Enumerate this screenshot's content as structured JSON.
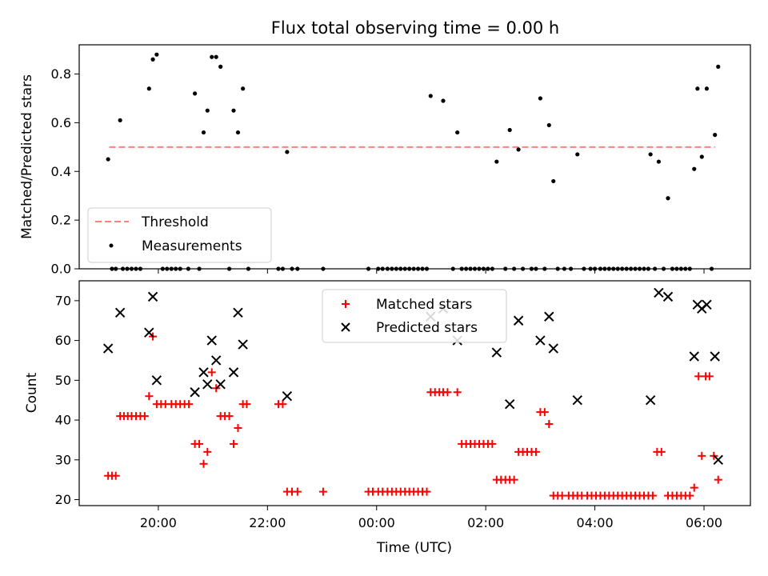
{
  "chart_data": [
    {
      "type": "scatter",
      "title": "Flux total observing time = 0.00 h",
      "xlabel": "",
      "ylabel": "Matched/Predicted stars",
      "ylim": [
        0,
        0.92
      ],
      "yticks": [
        "0.0",
        "0.2",
        "0.4",
        "0.6",
        "0.8"
      ],
      "xlim": [
        -1.45,
        10.85
      ],
      "legend": {
        "placement": "lower-left"
      },
      "threshold": {
        "name": "Threshold",
        "value": 0.5,
        "x_range": [
          -0.9,
          10.2
        ],
        "color": "#ff7f7f"
      },
      "series": [
        {
          "name": "Measurements",
          "color": "#000000",
          "points": [
            [
              -0.92,
              0.45
            ],
            [
              -0.85,
              0
            ],
            [
              -0.78,
              0
            ],
            [
              -0.7,
              0.61
            ],
            [
              -0.65,
              0
            ],
            [
              -0.57,
              0
            ],
            [
              -0.49,
              0
            ],
            [
              -0.41,
              0
            ],
            [
              -0.33,
              0
            ],
            [
              -0.17,
              0.74
            ],
            [
              -0.1,
              0.86
            ],
            [
              -0.03,
              0.88
            ],
            [
              0.08,
              0
            ],
            [
              0.16,
              0
            ],
            [
              0.24,
              0
            ],
            [
              0.32,
              0
            ],
            [
              0.4,
              0
            ],
            [
              0.55,
              0
            ],
            [
              0.67,
              0.72
            ],
            [
              0.75,
              0
            ],
            [
              0.83,
              0.56
            ],
            [
              0.9,
              0.65
            ],
            [
              0.98,
              0.87
            ],
            [
              1.06,
              0.87
            ],
            [
              1.14,
              0.83
            ],
            [
              1.3,
              0
            ],
            [
              1.38,
              0.65
            ],
            [
              1.46,
              0.56
            ],
            [
              1.55,
              0.74
            ],
            [
              1.65,
              0
            ],
            [
              2.2,
              0
            ],
            [
              2.28,
              0
            ],
            [
              2.36,
              0.48
            ],
            [
              2.45,
              0
            ],
            [
              2.55,
              0
            ],
            [
              3.02,
              0
            ],
            [
              3.85,
              0
            ],
            [
              4.03,
              0
            ],
            [
              4.11,
              0
            ],
            [
              4.2,
              0
            ],
            [
              4.28,
              0
            ],
            [
              4.36,
              0
            ],
            [
              4.44,
              0
            ],
            [
              4.52,
              0
            ],
            [
              4.6,
              0
            ],
            [
              4.68,
              0
            ],
            [
              4.76,
              0
            ],
            [
              4.84,
              0
            ],
            [
              4.92,
              0
            ],
            [
              4.99,
              0.71
            ],
            [
              5.22,
              0.69
            ],
            [
              5.4,
              0
            ],
            [
              5.48,
              0.56
            ],
            [
              5.56,
              0
            ],
            [
              5.64,
              0
            ],
            [
              5.72,
              0
            ],
            [
              5.8,
              0
            ],
            [
              5.88,
              0
            ],
            [
              5.96,
              0
            ],
            [
              6.04,
              0
            ],
            [
              6.12,
              0
            ],
            [
              6.2,
              0.44
            ],
            [
              6.36,
              0
            ],
            [
              6.44,
              0.57
            ],
            [
              6.52,
              0
            ],
            [
              6.6,
              0.49
            ],
            [
              6.68,
              0
            ],
            [
              6.84,
              0
            ],
            [
              6.92,
              0
            ],
            [
              7.0,
              0.7
            ],
            [
              7.08,
              0
            ],
            [
              7.16,
              0.59
            ],
            [
              7.24,
              0.36
            ],
            [
              7.32,
              0
            ],
            [
              7.44,
              0
            ],
            [
              7.56,
              0
            ],
            [
              7.68,
              0.47
            ],
            [
              7.8,
              0
            ],
            [
              7.92,
              0
            ],
            [
              8.0,
              0
            ],
            [
              8.1,
              0
            ],
            [
              8.18,
              0
            ],
            [
              8.26,
              0
            ],
            [
              8.34,
              0
            ],
            [
              8.42,
              0
            ],
            [
              8.5,
              0
            ],
            [
              8.58,
              0
            ],
            [
              8.66,
              0
            ],
            [
              8.74,
              0
            ],
            [
              8.82,
              0
            ],
            [
              8.9,
              0
            ],
            [
              8.98,
              0
            ],
            [
              9.02,
              0.47
            ],
            [
              9.1,
              0
            ],
            [
              9.17,
              0.44
            ],
            [
              9.26,
              0
            ],
            [
              9.34,
              0.29
            ],
            [
              9.42,
              0
            ],
            [
              9.5,
              0
            ],
            [
              9.58,
              0
            ],
            [
              9.66,
              0
            ],
            [
              9.74,
              0
            ],
            [
              9.82,
              0.41
            ],
            [
              9.88,
              0.74
            ],
            [
              9.96,
              0.46
            ],
            [
              10.05,
              0.74
            ],
            [
              10.14,
              0
            ],
            [
              10.2,
              0.55
            ],
            [
              10.26,
              0.83
            ]
          ]
        }
      ]
    },
    {
      "type": "scatter",
      "title": "",
      "xlabel": "Time (UTC)",
      "ylabel": "Count",
      "ylim": [
        18.5,
        75
      ],
      "yticks": [
        "20",
        "30",
        "40",
        "50",
        "60",
        "70"
      ],
      "xlim": [
        -1.45,
        10.85
      ],
      "xticks": [
        {
          "value": 0,
          "label": "20:00"
        },
        {
          "value": 2,
          "label": "22:00"
        },
        {
          "value": 4,
          "label": "00:00"
        },
        {
          "value": 6,
          "label": "02:00"
        },
        {
          "value": 8,
          "label": "04:00"
        },
        {
          "value": 10,
          "label": "06:00"
        }
      ],
      "legend": {
        "placement": "upper-center"
      },
      "series": [
        {
          "name": "Matched stars",
          "marker": "+",
          "color": "#ff0000",
          "points": [
            [
              -0.92,
              26
            ],
            [
              -0.85,
              26
            ],
            [
              -0.78,
              26
            ],
            [
              -0.7,
              41
            ],
            [
              -0.63,
              41
            ],
            [
              -0.56,
              41
            ],
            [
              -0.49,
              41
            ],
            [
              -0.41,
              41
            ],
            [
              -0.33,
              41
            ],
            [
              -0.25,
              41
            ],
            [
              -0.17,
              46
            ],
            [
              -0.1,
              61
            ],
            [
              -0.03,
              44
            ],
            [
              0.05,
              44
            ],
            [
              0.13,
              44
            ],
            [
              0.24,
              44
            ],
            [
              0.32,
              44
            ],
            [
              0.4,
              44
            ],
            [
              0.48,
              44
            ],
            [
              0.56,
              44
            ],
            [
              0.67,
              34
            ],
            [
              0.75,
              34
            ],
            [
              0.83,
              29
            ],
            [
              0.9,
              32
            ],
            [
              0.98,
              52
            ],
            [
              1.06,
              48
            ],
            [
              1.14,
              41
            ],
            [
              1.22,
              41
            ],
            [
              1.3,
              41
            ],
            [
              1.38,
              34
            ],
            [
              1.46,
              38
            ],
            [
              1.55,
              44
            ],
            [
              1.62,
              44
            ],
            [
              2.2,
              44
            ],
            [
              2.28,
              44
            ],
            [
              2.36,
              22
            ],
            [
              2.45,
              22
            ],
            [
              2.55,
              22
            ],
            [
              3.02,
              22
            ],
            [
              3.85,
              22
            ],
            [
              3.93,
              22
            ],
            [
              4.03,
              22
            ],
            [
              4.11,
              22
            ],
            [
              4.2,
              22
            ],
            [
              4.28,
              22
            ],
            [
              4.36,
              22
            ],
            [
              4.44,
              22
            ],
            [
              4.52,
              22
            ],
            [
              4.6,
              22
            ],
            [
              4.68,
              22
            ],
            [
              4.76,
              22
            ],
            [
              4.84,
              22
            ],
            [
              4.92,
              22
            ],
            [
              4.99,
              47
            ],
            [
              5.07,
              47
            ],
            [
              5.15,
              47
            ],
            [
              5.22,
              47
            ],
            [
              5.3,
              47
            ],
            [
              5.48,
              47
            ],
            [
              5.56,
              34
            ],
            [
              5.64,
              34
            ],
            [
              5.72,
              34
            ],
            [
              5.8,
              34
            ],
            [
              5.88,
              34
            ],
            [
              5.96,
              34
            ],
            [
              6.04,
              34
            ],
            [
              6.12,
              34
            ],
            [
              6.2,
              25
            ],
            [
              6.28,
              25
            ],
            [
              6.36,
              25
            ],
            [
              6.44,
              25
            ],
            [
              6.52,
              25
            ],
            [
              6.6,
              32
            ],
            [
              6.68,
              32
            ],
            [
              6.76,
              32
            ],
            [
              6.84,
              32
            ],
            [
              6.92,
              32
            ],
            [
              7.0,
              42
            ],
            [
              7.08,
              42
            ],
            [
              7.16,
              39
            ],
            [
              7.24,
              21
            ],
            [
              7.32,
              21
            ],
            [
              7.4,
              21
            ],
            [
              7.52,
              21
            ],
            [
              7.6,
              21
            ],
            [
              7.68,
              21
            ],
            [
              7.76,
              21
            ],
            [
              7.86,
              21
            ],
            [
              7.94,
              21
            ],
            [
              8.02,
              21
            ],
            [
              8.1,
              21
            ],
            [
              8.18,
              21
            ],
            [
              8.26,
              21
            ],
            [
              8.34,
              21
            ],
            [
              8.42,
              21
            ],
            [
              8.5,
              21
            ],
            [
              8.58,
              21
            ],
            [
              8.66,
              21
            ],
            [
              8.74,
              21
            ],
            [
              8.82,
              21
            ],
            [
              8.9,
              21
            ],
            [
              8.98,
              21
            ],
            [
              9.06,
              21
            ],
            [
              9.14,
              32
            ],
            [
              9.22,
              32
            ],
            [
              9.34,
              21
            ],
            [
              9.42,
              21
            ],
            [
              9.5,
              21
            ],
            [
              9.58,
              21
            ],
            [
              9.66,
              21
            ],
            [
              9.74,
              21
            ],
            [
              9.82,
              23
            ],
            [
              9.9,
              51
            ],
            [
              9.96,
              31
            ],
            [
              10.03,
              51
            ],
            [
              10.1,
              51
            ],
            [
              10.18,
              31
            ],
            [
              10.26,
              25
            ]
          ]
        },
        {
          "name": "Predicted stars",
          "marker": "x",
          "color": "#000000",
          "points": [
            [
              -0.92,
              58
            ],
            [
              -0.7,
              67
            ],
            [
              -0.17,
              62
            ],
            [
              -0.1,
              71
            ],
            [
              -0.03,
              50
            ],
            [
              0.67,
              47
            ],
            [
              0.83,
              52
            ],
            [
              0.9,
              49
            ],
            [
              0.98,
              60
            ],
            [
              1.06,
              55
            ],
            [
              1.14,
              49
            ],
            [
              1.38,
              52
            ],
            [
              1.46,
              67
            ],
            [
              1.55,
              59
            ],
            [
              2.36,
              46
            ],
            [
              4.99,
              66
            ],
            [
              5.22,
              68
            ],
            [
              5.48,
              60
            ],
            [
              6.2,
              57
            ],
            [
              6.44,
              44
            ],
            [
              6.6,
              65
            ],
            [
              7.0,
              60
            ],
            [
              7.16,
              66
            ],
            [
              7.24,
              58
            ],
            [
              7.68,
              45
            ],
            [
              9.02,
              45
            ],
            [
              9.17,
              72
            ],
            [
              9.34,
              71
            ],
            [
              9.82,
              56
            ],
            [
              9.88,
              69
            ],
            [
              9.96,
              68
            ],
            [
              10.05,
              69
            ],
            [
              10.2,
              56
            ],
            [
              10.26,
              30
            ]
          ]
        }
      ]
    }
  ]
}
